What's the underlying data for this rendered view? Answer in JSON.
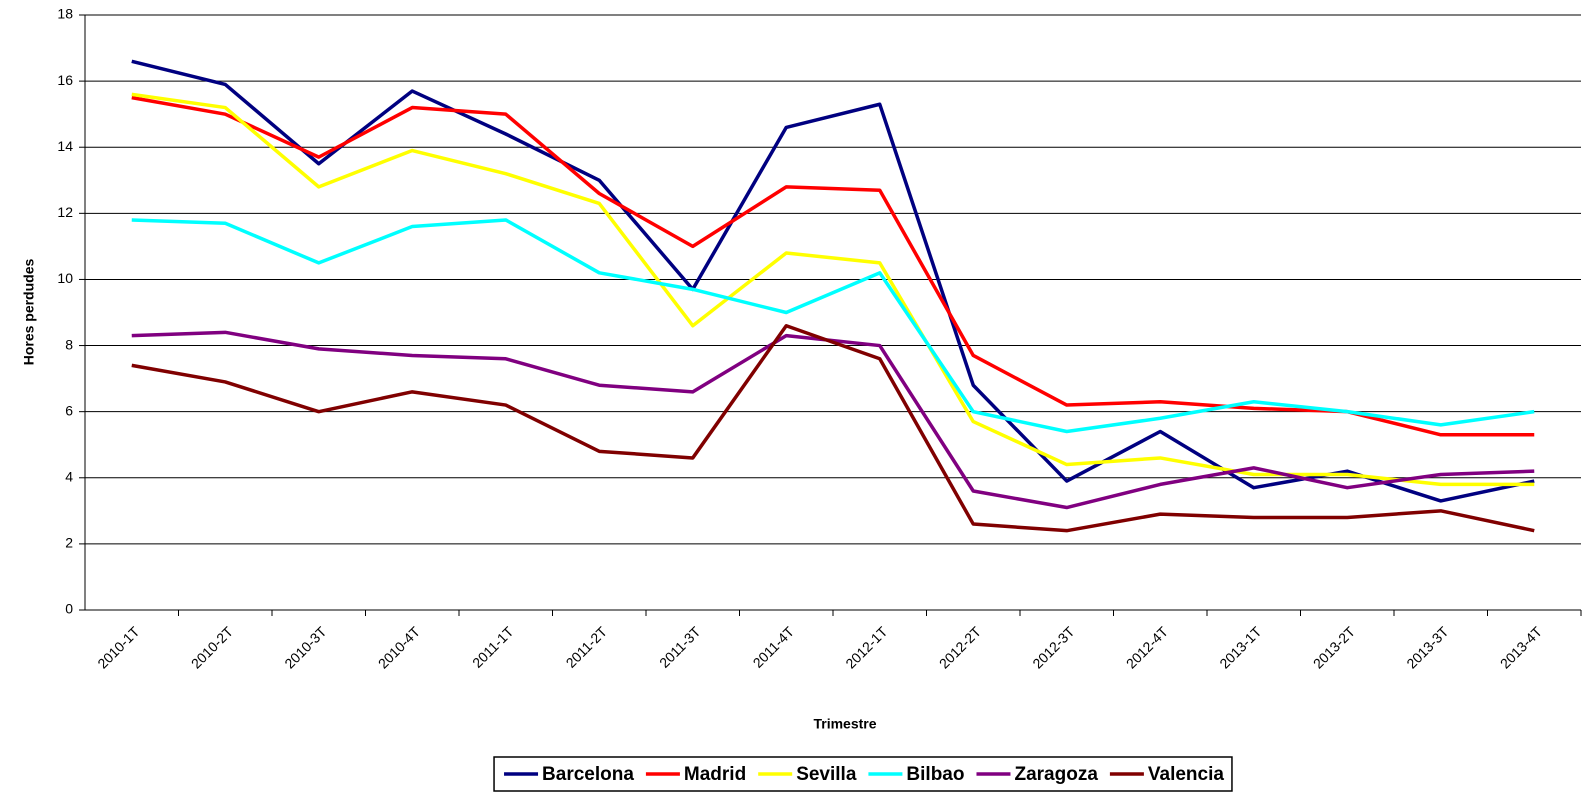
{
  "chart_data": {
    "type": "line",
    "x_label": "Trimestre",
    "y_label": "Hores perdudes",
    "categories": [
      "2010-1T",
      "2010-2T",
      "2010-3T",
      "2010-4T",
      "2011-1T",
      "2011-2T",
      "2011-3T",
      "2011-4T",
      "2012-1T",
      "2012-2T",
      "2012-3T",
      "2012-4T",
      "2013-1T",
      "2013-2T",
      "2013-3T",
      "2013-4T"
    ],
    "series": [
      {
        "name": "Barcelona",
        "color": "#000080",
        "values": [
          16.6,
          15.9,
          13.5,
          15.7,
          14.4,
          13.0,
          9.7,
          14.6,
          15.3,
          6.8,
          3.9,
          5.4,
          3.7,
          4.2,
          3.3,
          3.9
        ]
      },
      {
        "name": "Madrid",
        "color": "#ff0000",
        "values": [
          15.5,
          15.0,
          13.7,
          15.2,
          15.0,
          12.6,
          11.0,
          12.8,
          12.7,
          7.7,
          6.2,
          6.3,
          6.1,
          6.0,
          5.3,
          5.3
        ]
      },
      {
        "name": "Sevilla",
        "color": "#ffff00",
        "values": [
          15.6,
          15.2,
          12.8,
          13.9,
          13.2,
          12.3,
          8.6,
          10.8,
          10.5,
          5.7,
          4.4,
          4.6,
          4.1,
          4.1,
          3.8,
          3.8
        ]
      },
      {
        "name": "Bilbao",
        "color": "#00ffff",
        "values": [
          11.8,
          11.7,
          10.5,
          11.6,
          11.8,
          10.2,
          9.7,
          9.0,
          10.2,
          6.0,
          5.4,
          5.8,
          6.3,
          6.0,
          5.6,
          6.0
        ]
      },
      {
        "name": "Zaragoza",
        "color": "#800080",
        "values": [
          8.3,
          8.4,
          7.9,
          7.7,
          7.6,
          6.8,
          6.6,
          8.3,
          8.0,
          3.6,
          3.1,
          3.8,
          4.3,
          3.7,
          4.1,
          4.2
        ]
      },
      {
        "name": "Valencia",
        "color": "#800000",
        "values": [
          7.4,
          6.9,
          6.0,
          6.6,
          6.2,
          4.8,
          4.6,
          8.6,
          7.6,
          2.6,
          2.4,
          2.9,
          2.8,
          2.8,
          3.0,
          2.4
        ]
      }
    ],
    "ylim": [
      0,
      18
    ],
    "yticks": [
      0,
      2,
      4,
      6,
      8,
      10,
      12,
      14,
      16,
      18
    ],
    "grid": true,
    "legend": "bottom"
  }
}
